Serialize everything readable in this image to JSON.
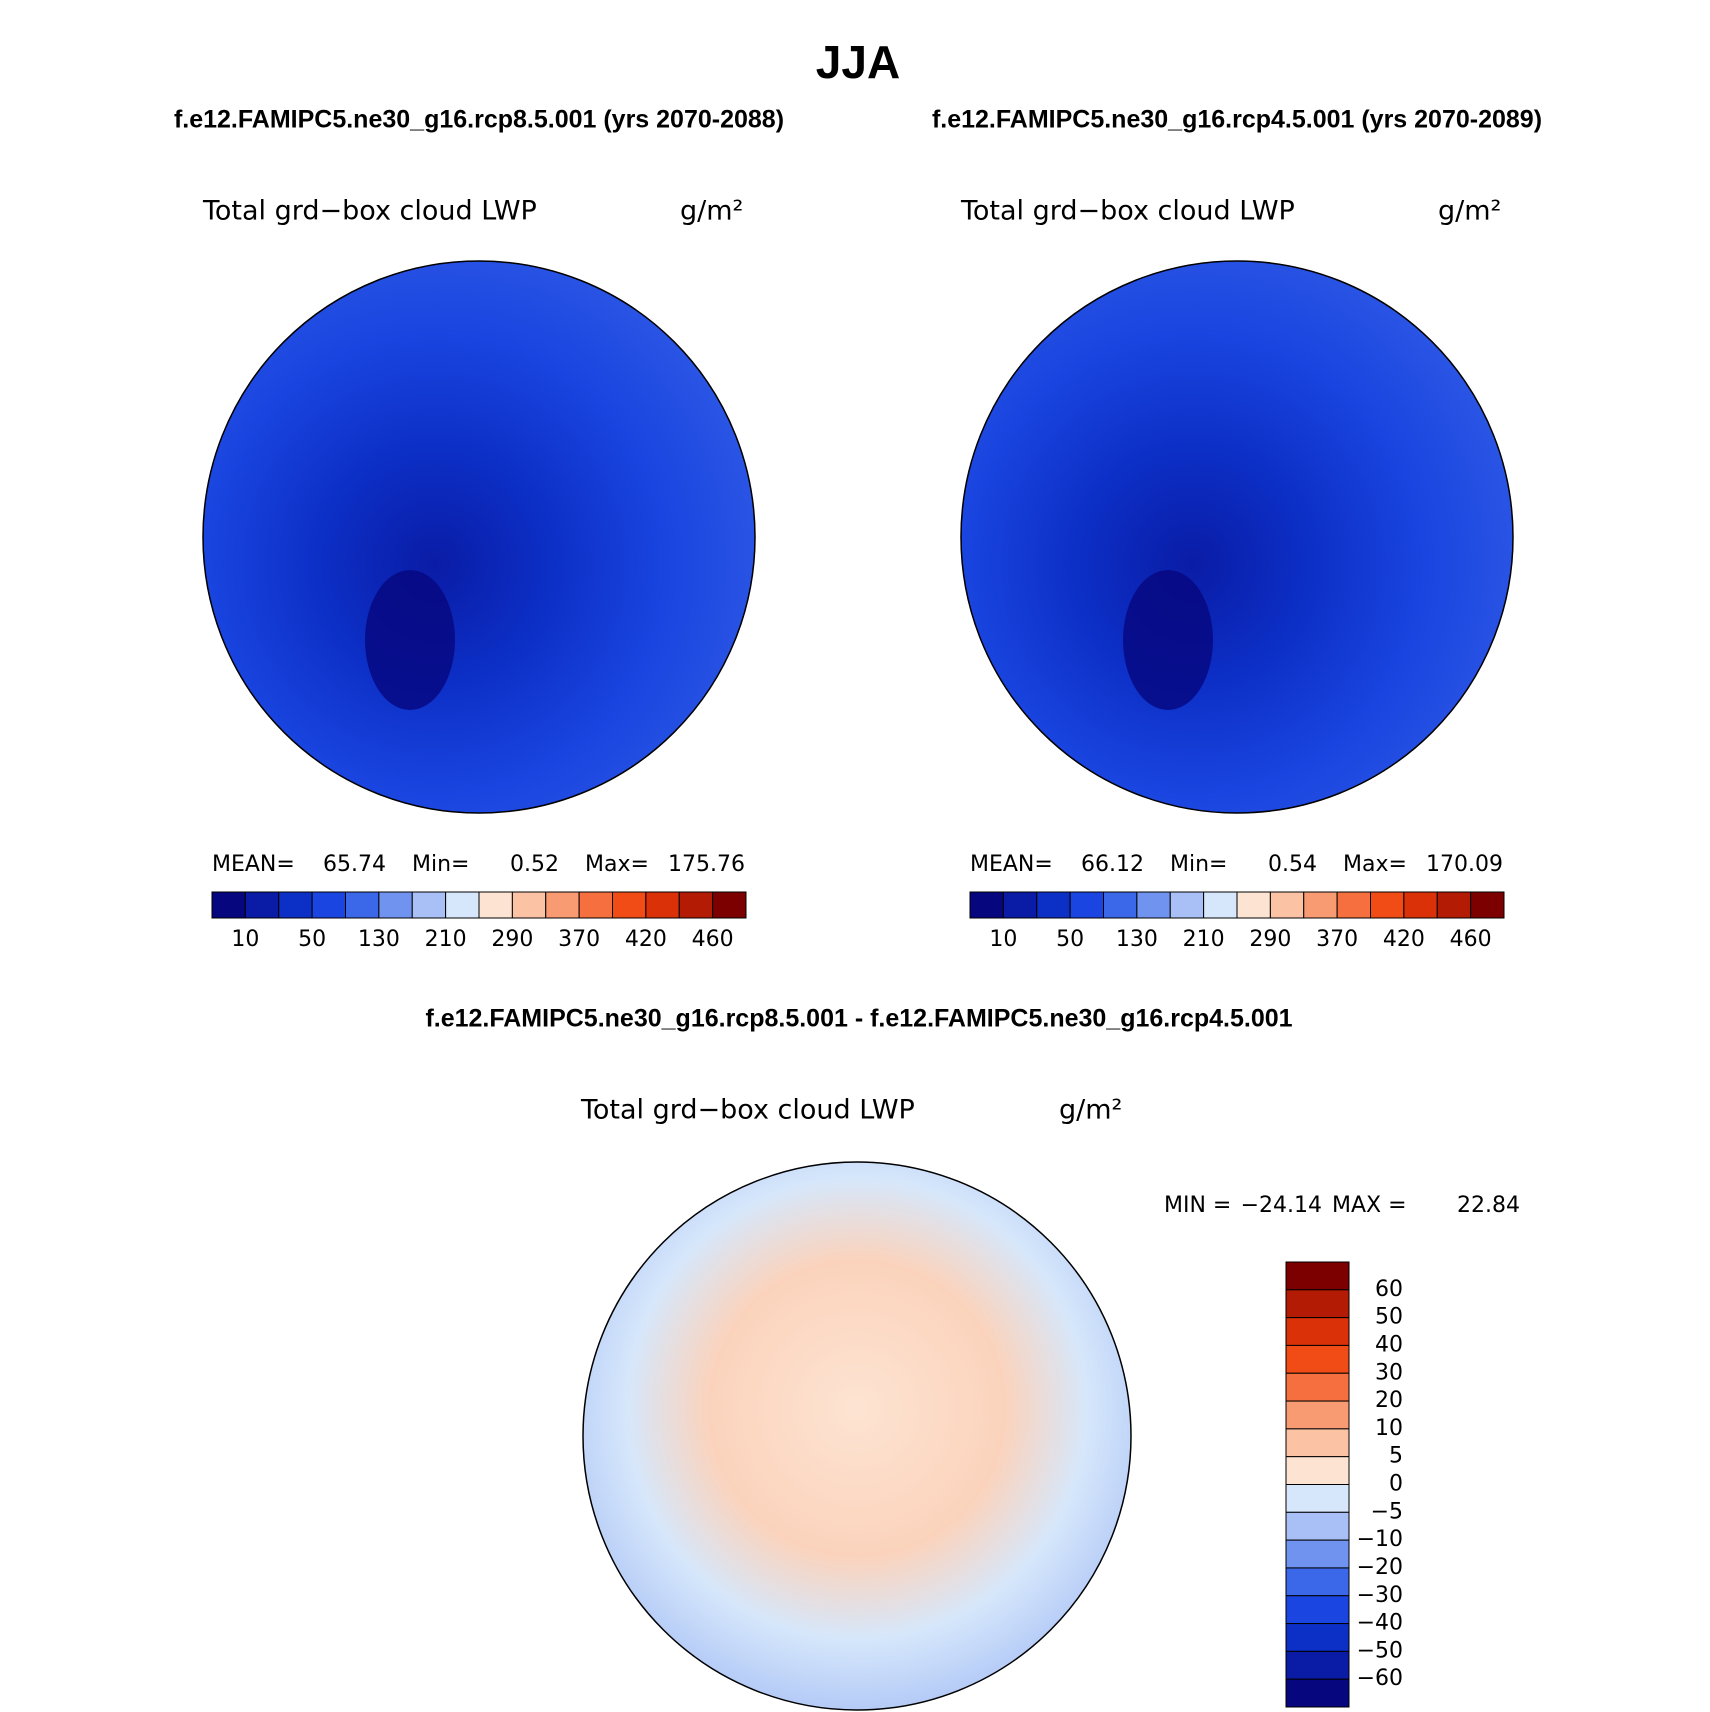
{
  "title": "JJA",
  "panels": [
    {
      "subtitle": "f.e12.FAMIPC5.ne30_g16.rcp8.5.001 (yrs 2070-2088)",
      "variable": "Total grd−box cloud LWP",
      "units": "g/m²",
      "stats": {
        "mean_label": "MEAN=",
        "mean": "65.74",
        "min_label": "Min=",
        "min": "0.52",
        "max_label": "Max=",
        "max": "175.76"
      },
      "colorbar_labels": [
        "10",
        "50",
        "130",
        "210",
        "290",
        "370",
        "420",
        "460"
      ]
    },
    {
      "subtitle": "f.e12.FAMIPC5.ne30_g16.rcp4.5.001 (yrs 2070-2089)",
      "variable": "Total grd−box cloud LWP",
      "units": "g/m²",
      "stats": {
        "mean_label": "MEAN=",
        "mean": "66.12",
        "min_label": "Min=",
        "min": "0.54",
        "max_label": "Max=",
        "max": "170.09"
      },
      "colorbar_labels": [
        "10",
        "50",
        "130",
        "210",
        "290",
        "370",
        "420",
        "460"
      ]
    }
  ],
  "difference": {
    "subtitle": "f.e12.FAMIPC5.ne30_g16.rcp8.5.001 - f.e12.FAMIPC5.ne30_g16.rcp4.5.001",
    "variable": "Total grd−box cloud LWP",
    "units": "g/m²",
    "stats": {
      "min_label": "MIN =",
      "min": "−24.14",
      "max_label": "MAX =",
      "max": "22.84"
    },
    "colorbar_labels": [
      "60",
      "50",
      "40",
      "30",
      "20",
      "10",
      "5",
      "0",
      "−5",
      "−10",
      "−20",
      "−30",
      "−40",
      "−50",
      "−60"
    ]
  },
  "colors": [
    "#06067e",
    "#0a1ca6",
    "#0c2fc6",
    "#1a45e0",
    "#3a68e8",
    "#6f93ef",
    "#a8c0f5",
    "#d6e7fb",
    "#fde4d2",
    "#fbc2a4",
    "#f89b72",
    "#f5703e",
    "#f24c16",
    "#da3108",
    "#b31b04",
    "#7d0000"
  ]
}
